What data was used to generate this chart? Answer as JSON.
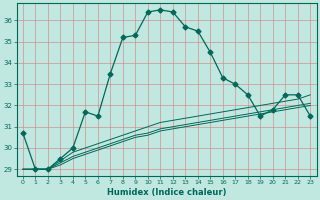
{
  "xlabel": "Humidex (Indice chaleur)",
  "background_color": "#c0e8e0",
  "grid_color_h": "#d8a8a8",
  "grid_color_v": "#d8a8a8",
  "line_color": "#006858",
  "xlim": [
    -0.5,
    23.5
  ],
  "ylim": [
    28.7,
    36.8
  ],
  "yticks": [
    29,
    30,
    31,
    32,
    33,
    34,
    35,
    36
  ],
  "xticks": [
    0,
    1,
    2,
    3,
    4,
    5,
    6,
    7,
    8,
    9,
    10,
    11,
    12,
    13,
    14,
    15,
    16,
    17,
    18,
    19,
    20,
    21,
    22,
    23
  ],
  "series1_x": [
    0,
    1,
    2,
    3,
    4,
    5,
    6,
    7,
    8,
    9,
    10,
    11,
    12,
    13,
    14,
    15,
    16,
    17,
    18,
    19,
    20,
    21,
    22,
    23
  ],
  "series1_y": [
    30.7,
    29.0,
    29.0,
    29.5,
    30.0,
    31.7,
    31.5,
    33.5,
    35.2,
    35.3,
    36.4,
    36.5,
    36.4,
    35.7,
    35.5,
    34.5,
    33.3,
    33.0,
    32.5,
    31.5,
    31.8,
    32.5,
    32.5,
    31.5
  ],
  "series2_x": [
    0,
    1,
    2,
    3,
    4,
    5,
    6,
    7,
    8,
    9,
    10,
    11,
    12,
    13,
    14,
    15,
    16,
    17,
    18,
    19,
    20,
    21,
    22,
    23
  ],
  "series2_y": [
    29.0,
    29.0,
    29.0,
    29.2,
    29.5,
    29.7,
    29.9,
    30.1,
    30.3,
    30.5,
    30.6,
    30.8,
    30.9,
    31.0,
    31.1,
    31.2,
    31.3,
    31.4,
    31.5,
    31.6,
    31.7,
    31.8,
    31.9,
    32.0
  ],
  "series3_x": [
    0,
    1,
    2,
    3,
    4,
    5,
    6,
    7,
    8,
    9,
    10,
    11,
    12,
    13,
    14,
    15,
    16,
    17,
    18,
    19,
    20,
    21,
    22,
    23
  ],
  "series3_y": [
    29.0,
    29.0,
    29.0,
    29.3,
    29.6,
    29.8,
    30.0,
    30.2,
    30.4,
    30.6,
    30.7,
    30.9,
    31.0,
    31.1,
    31.2,
    31.3,
    31.4,
    31.5,
    31.6,
    31.7,
    31.8,
    31.9,
    32.0,
    32.1
  ],
  "series4_x": [
    0,
    1,
    2,
    3,
    4,
    5,
    6,
    7,
    8,
    9,
    10,
    11,
    12,
    13,
    14,
    15,
    16,
    17,
    18,
    19,
    20,
    21,
    22,
    23
  ],
  "series4_y": [
    29.0,
    29.0,
    29.0,
    29.4,
    29.8,
    30.0,
    30.2,
    30.4,
    30.6,
    30.8,
    31.0,
    31.2,
    31.3,
    31.4,
    31.5,
    31.6,
    31.7,
    31.8,
    31.9,
    32.0,
    32.1,
    32.2,
    32.3,
    32.5
  ]
}
